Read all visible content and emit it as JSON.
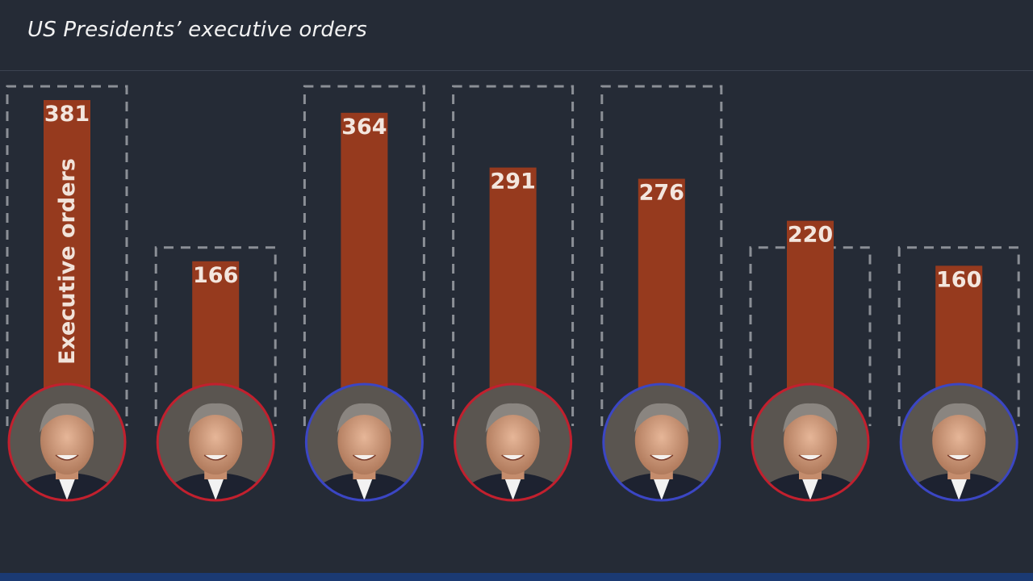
{
  "header": {
    "title": "US Presidents’ executive orders"
  },
  "colors": {
    "background": "#252b36",
    "bar": "#963a1e",
    "republican": "#c2202e",
    "democrat": "#3b46c4",
    "dashed_outline": "#8b8f96",
    "footer": "#1b3a73"
  },
  "chart_data": {
    "type": "bar",
    "title": "US Presidents’ executive orders",
    "ylabel": "Executive orders",
    "ylim": [
      0,
      381
    ],
    "grid": false,
    "legend": "none",
    "categories": [
      "",
      "",
      "",
      "",
      "",
      "",
      ""
    ],
    "values": [
      381,
      166,
      364,
      291,
      276,
      220,
      160
    ],
    "series": [
      {
        "values": [
          381,
          166,
          364,
          291,
          276,
          220,
          160
        ]
      }
    ],
    "portrait_ring": [
      "republican",
      "republican",
      "democrat",
      "republican",
      "democrat",
      "republican",
      "democrat"
    ],
    "dashed_box_level": [
      381,
      166,
      381,
      381,
      381,
      166,
      166
    ]
  }
}
